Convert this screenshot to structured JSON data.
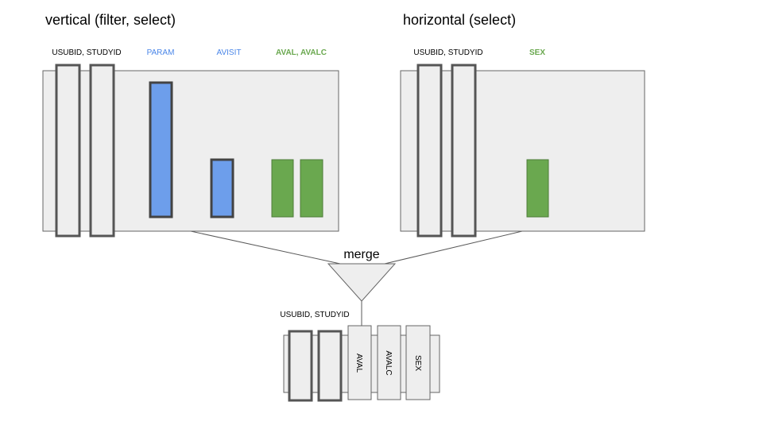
{
  "colors": {
    "panel_fill": "#eeeeee",
    "panel_stroke": "#666666",
    "key_stroke": "#555555",
    "blue": "#6d9eeb",
    "blue_stroke": "#3d5a80",
    "blue_text": "#4a86e8",
    "green": "#6aa84f",
    "green_stroke": "#4e7c3a",
    "green_text": "#6aa84f",
    "line": "#595959"
  },
  "vertical": {
    "title": "vertical (filter, select)",
    "label_keys": "USUBID, STUDYID",
    "label_param": "PARAM",
    "label_avisit": "AVISIT",
    "label_aval": "AVAL, AVALC"
  },
  "horizontal": {
    "title": "horizontal (select)",
    "label_keys": "USUBID, STUDYID",
    "label_sex": "SEX"
  },
  "merge": {
    "label": "merge"
  },
  "result": {
    "label_keys": "USUBID, STUDYID",
    "columns": [
      "AVAL",
      "AVALC",
      "SEX"
    ]
  }
}
